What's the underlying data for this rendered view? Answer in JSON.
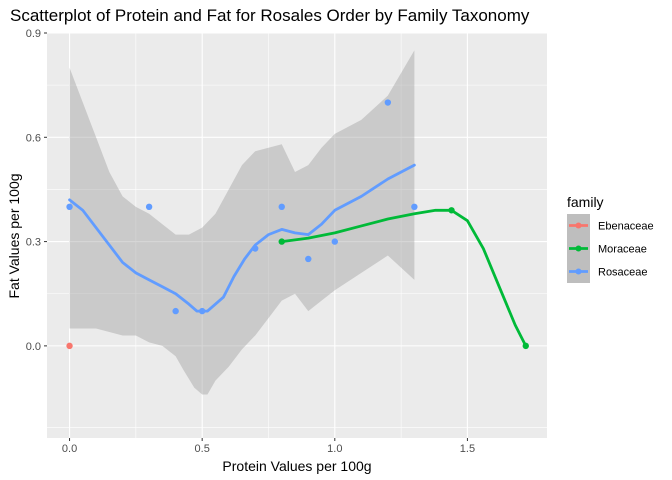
{
  "chart_data": {
    "type": "scatter",
    "title": "Scatterplot of Protein and Fat for Rosales Order by Family Taxonomy",
    "xlabel": "Protein Values per 100g",
    "ylabel": "Fat Values per 100g",
    "xlim": [
      -0.085,
      1.8
    ],
    "ylim": [
      -0.265,
      0.9
    ],
    "x_ticks": [
      0.0,
      0.5,
      1.0,
      1.5
    ],
    "x_tick_labels": [
      "0.0",
      "0.5",
      "1.0",
      "1.5"
    ],
    "y_ticks": [
      0.0,
      0.3,
      0.6,
      0.9
    ],
    "y_tick_labels": [
      "0.0",
      "0.3",
      "0.6",
      "0.9"
    ],
    "grid": true,
    "legend": {
      "title": "family",
      "position": "right",
      "entries": [
        "Ebenaceae",
        "Moraceae",
        "Rosaceae"
      ]
    },
    "series": [
      {
        "name": "Ebenaceae",
        "color": "#F8766D",
        "points": [
          [
            0.0,
            0.0
          ]
        ],
        "smooth": []
      },
      {
        "name": "Moraceae",
        "color": "#00BA38",
        "points": [
          [
            0.8,
            0.3
          ],
          [
            1.44,
            0.39
          ],
          [
            1.72,
            0.0
          ]
        ],
        "smooth": [
          [
            0.8,
            0.3
          ],
          [
            0.9,
            0.31
          ],
          [
            1.0,
            0.325
          ],
          [
            1.1,
            0.345
          ],
          [
            1.2,
            0.365
          ],
          [
            1.3,
            0.38
          ],
          [
            1.38,
            0.39
          ],
          [
            1.44,
            0.39
          ],
          [
            1.5,
            0.36
          ],
          [
            1.56,
            0.28
          ],
          [
            1.62,
            0.17
          ],
          [
            1.68,
            0.06
          ],
          [
            1.72,
            0.0
          ]
        ]
      },
      {
        "name": "Rosaceae",
        "color": "#619CFF",
        "points": [
          [
            0.0,
            0.4
          ],
          [
            0.3,
            0.4
          ],
          [
            0.4,
            0.1
          ],
          [
            0.5,
            0.1
          ],
          [
            0.7,
            0.28
          ],
          [
            0.8,
            0.4
          ],
          [
            0.9,
            0.25
          ],
          [
            1.0,
            0.3
          ],
          [
            1.2,
            0.7
          ],
          [
            1.3,
            0.4
          ]
        ],
        "smooth": [
          [
            0.0,
            0.42
          ],
          [
            0.05,
            0.39
          ],
          [
            0.1,
            0.34
          ],
          [
            0.15,
            0.29
          ],
          [
            0.2,
            0.24
          ],
          [
            0.25,
            0.21
          ],
          [
            0.3,
            0.19
          ],
          [
            0.35,
            0.17
          ],
          [
            0.4,
            0.15
          ],
          [
            0.45,
            0.12
          ],
          [
            0.48,
            0.1
          ],
          [
            0.52,
            0.1
          ],
          [
            0.58,
            0.14
          ],
          [
            0.62,
            0.2
          ],
          [
            0.66,
            0.25
          ],
          [
            0.7,
            0.29
          ],
          [
            0.75,
            0.32
          ],
          [
            0.8,
            0.335
          ],
          [
            0.85,
            0.325
          ],
          [
            0.9,
            0.32
          ],
          [
            0.95,
            0.35
          ],
          [
            1.0,
            0.39
          ],
          [
            1.1,
            0.43
          ],
          [
            1.2,
            0.48
          ],
          [
            1.3,
            0.52
          ]
        ],
        "band_upper": [
          [
            0.0,
            0.8
          ],
          [
            0.05,
            0.7
          ],
          [
            0.1,
            0.6
          ],
          [
            0.15,
            0.5
          ],
          [
            0.2,
            0.43
          ],
          [
            0.25,
            0.4
          ],
          [
            0.3,
            0.38
          ],
          [
            0.35,
            0.35
          ],
          [
            0.4,
            0.32
          ],
          [
            0.45,
            0.32
          ],
          [
            0.5,
            0.34
          ],
          [
            0.55,
            0.38
          ],
          [
            0.6,
            0.45
          ],
          [
            0.65,
            0.52
          ],
          [
            0.7,
            0.56
          ],
          [
            0.75,
            0.57
          ],
          [
            0.8,
            0.58
          ],
          [
            0.85,
            0.5
          ],
          [
            0.9,
            0.52
          ],
          [
            0.95,
            0.57
          ],
          [
            1.0,
            0.61
          ],
          [
            1.1,
            0.65
          ],
          [
            1.2,
            0.72
          ],
          [
            1.3,
            0.85
          ]
        ],
        "band_lower": [
          [
            1.3,
            0.19
          ],
          [
            1.2,
            0.26
          ],
          [
            1.1,
            0.21
          ],
          [
            1.0,
            0.16
          ],
          [
            0.95,
            0.13
          ],
          [
            0.9,
            0.1
          ],
          [
            0.85,
            0.15
          ],
          [
            0.8,
            0.13
          ],
          [
            0.75,
            0.08
          ],
          [
            0.7,
            0.03
          ],
          [
            0.65,
            -0.01
          ],
          [
            0.6,
            -0.06
          ],
          [
            0.55,
            -0.1
          ],
          [
            0.52,
            -0.14
          ],
          [
            0.5,
            -0.14
          ],
          [
            0.47,
            -0.12
          ],
          [
            0.43,
            -0.07
          ],
          [
            0.4,
            -0.03
          ],
          [
            0.35,
            0.0
          ],
          [
            0.3,
            0.01
          ],
          [
            0.25,
            0.03
          ],
          [
            0.2,
            0.03
          ],
          [
            0.15,
            0.04
          ],
          [
            0.1,
            0.05
          ],
          [
            0.05,
            0.05
          ],
          [
            0.0,
            0.05
          ]
        ]
      }
    ]
  }
}
